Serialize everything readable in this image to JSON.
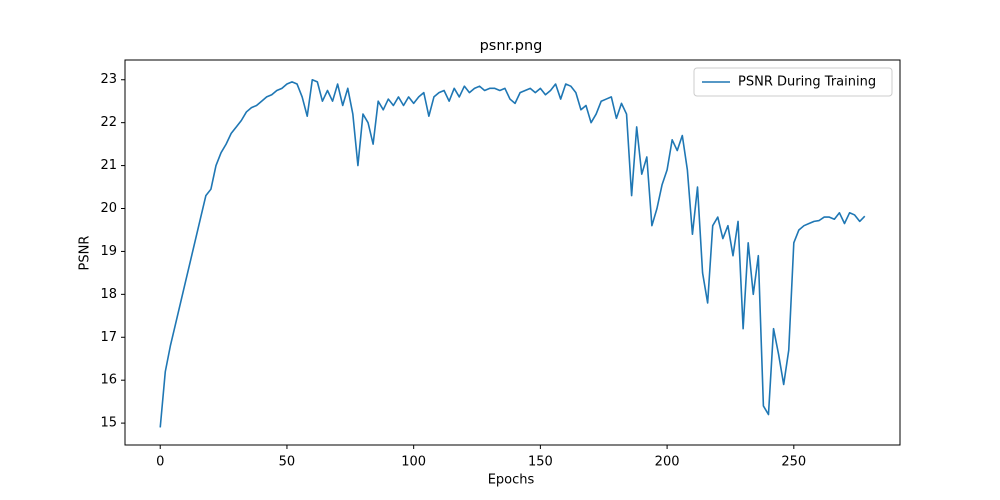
{
  "chart_data": {
    "type": "line",
    "title": "psnr.png",
    "x_label": "Epochs",
    "y_label": "PSNR",
    "legend": "upper right",
    "grid": false,
    "xlim": [
      -13.9,
      291.9
    ],
    "ylim": [
      14.49,
      23.46
    ],
    "xticks": [
      0,
      50,
      100,
      150,
      200,
      250
    ],
    "yticks": [
      15,
      16,
      17,
      18,
      19,
      20,
      21,
      22,
      23
    ],
    "x": [
      0,
      2,
      4,
      6,
      8,
      10,
      12,
      14,
      16,
      18,
      20,
      22,
      24,
      26,
      28,
      30,
      32,
      34,
      36,
      38,
      40,
      42,
      44,
      46,
      48,
      50,
      52,
      54,
      56,
      58,
      60,
      62,
      64,
      66,
      68,
      70,
      72,
      74,
      76,
      78,
      80,
      82,
      84,
      86,
      88,
      90,
      92,
      94,
      96,
      98,
      100,
      102,
      104,
      106,
      108,
      110,
      112,
      114,
      116,
      118,
      120,
      122,
      124,
      126,
      128,
      130,
      132,
      134,
      136,
      138,
      140,
      142,
      144,
      146,
      148,
      150,
      152,
      154,
      156,
      158,
      160,
      162,
      164,
      166,
      168,
      170,
      172,
      174,
      176,
      178,
      180,
      182,
      184,
      186,
      188,
      190,
      192,
      194,
      196,
      198,
      200,
      202,
      204,
      206,
      208,
      210,
      212,
      214,
      216,
      218,
      220,
      222,
      224,
      226,
      228,
      230,
      232,
      234,
      236,
      238,
      240,
      242,
      244,
      246,
      248,
      250,
      252,
      254,
      256,
      258,
      260,
      262,
      264,
      266,
      268,
      270,
      272,
      274,
      276,
      278
    ],
    "series": [
      {
        "name": "PSNR During Training",
        "color": "#1f77b4",
        "values": [
          14.9,
          16.2,
          16.8,
          17.3,
          17.8,
          18.3,
          18.8,
          19.3,
          19.8,
          20.3,
          20.45,
          21.0,
          21.3,
          21.5,
          21.75,
          21.9,
          22.05,
          22.25,
          22.35,
          22.4,
          22.5,
          22.6,
          22.65,
          22.75,
          22.8,
          22.9,
          22.95,
          22.9,
          22.6,
          22.15,
          23.0,
          22.95,
          22.5,
          22.75,
          22.5,
          22.9,
          22.4,
          22.8,
          22.2,
          21.0,
          22.2,
          22.0,
          21.5,
          22.5,
          22.3,
          22.55,
          22.4,
          22.6,
          22.4,
          22.6,
          22.45,
          22.6,
          22.7,
          22.15,
          22.6,
          22.7,
          22.75,
          22.5,
          22.8,
          22.6,
          22.85,
          22.7,
          22.8,
          22.85,
          22.75,
          22.8,
          22.8,
          22.75,
          22.8,
          22.55,
          22.45,
          22.7,
          22.75,
          22.8,
          22.7,
          22.8,
          22.65,
          22.75,
          22.9,
          22.55,
          22.9,
          22.85,
          22.7,
          22.3,
          22.4,
          22.0,
          22.2,
          22.5,
          22.55,
          22.6,
          22.1,
          22.45,
          22.2,
          20.3,
          21.9,
          20.8,
          21.2,
          19.6,
          20.0,
          20.55,
          20.9,
          21.6,
          21.35,
          21.7,
          20.9,
          19.4,
          20.5,
          18.5,
          17.8,
          19.6,
          19.8,
          19.3,
          19.6,
          18.9,
          19.7,
          17.2,
          19.2,
          18.0,
          18.9,
          15.4,
          15.2,
          17.2,
          16.6,
          15.9,
          16.7,
          19.2,
          19.5,
          19.6,
          19.65,
          19.7,
          19.72,
          19.8,
          19.8,
          19.75,
          19.9,
          19.65,
          19.9,
          19.85,
          19.7,
          19.82
        ]
      }
    ]
  }
}
